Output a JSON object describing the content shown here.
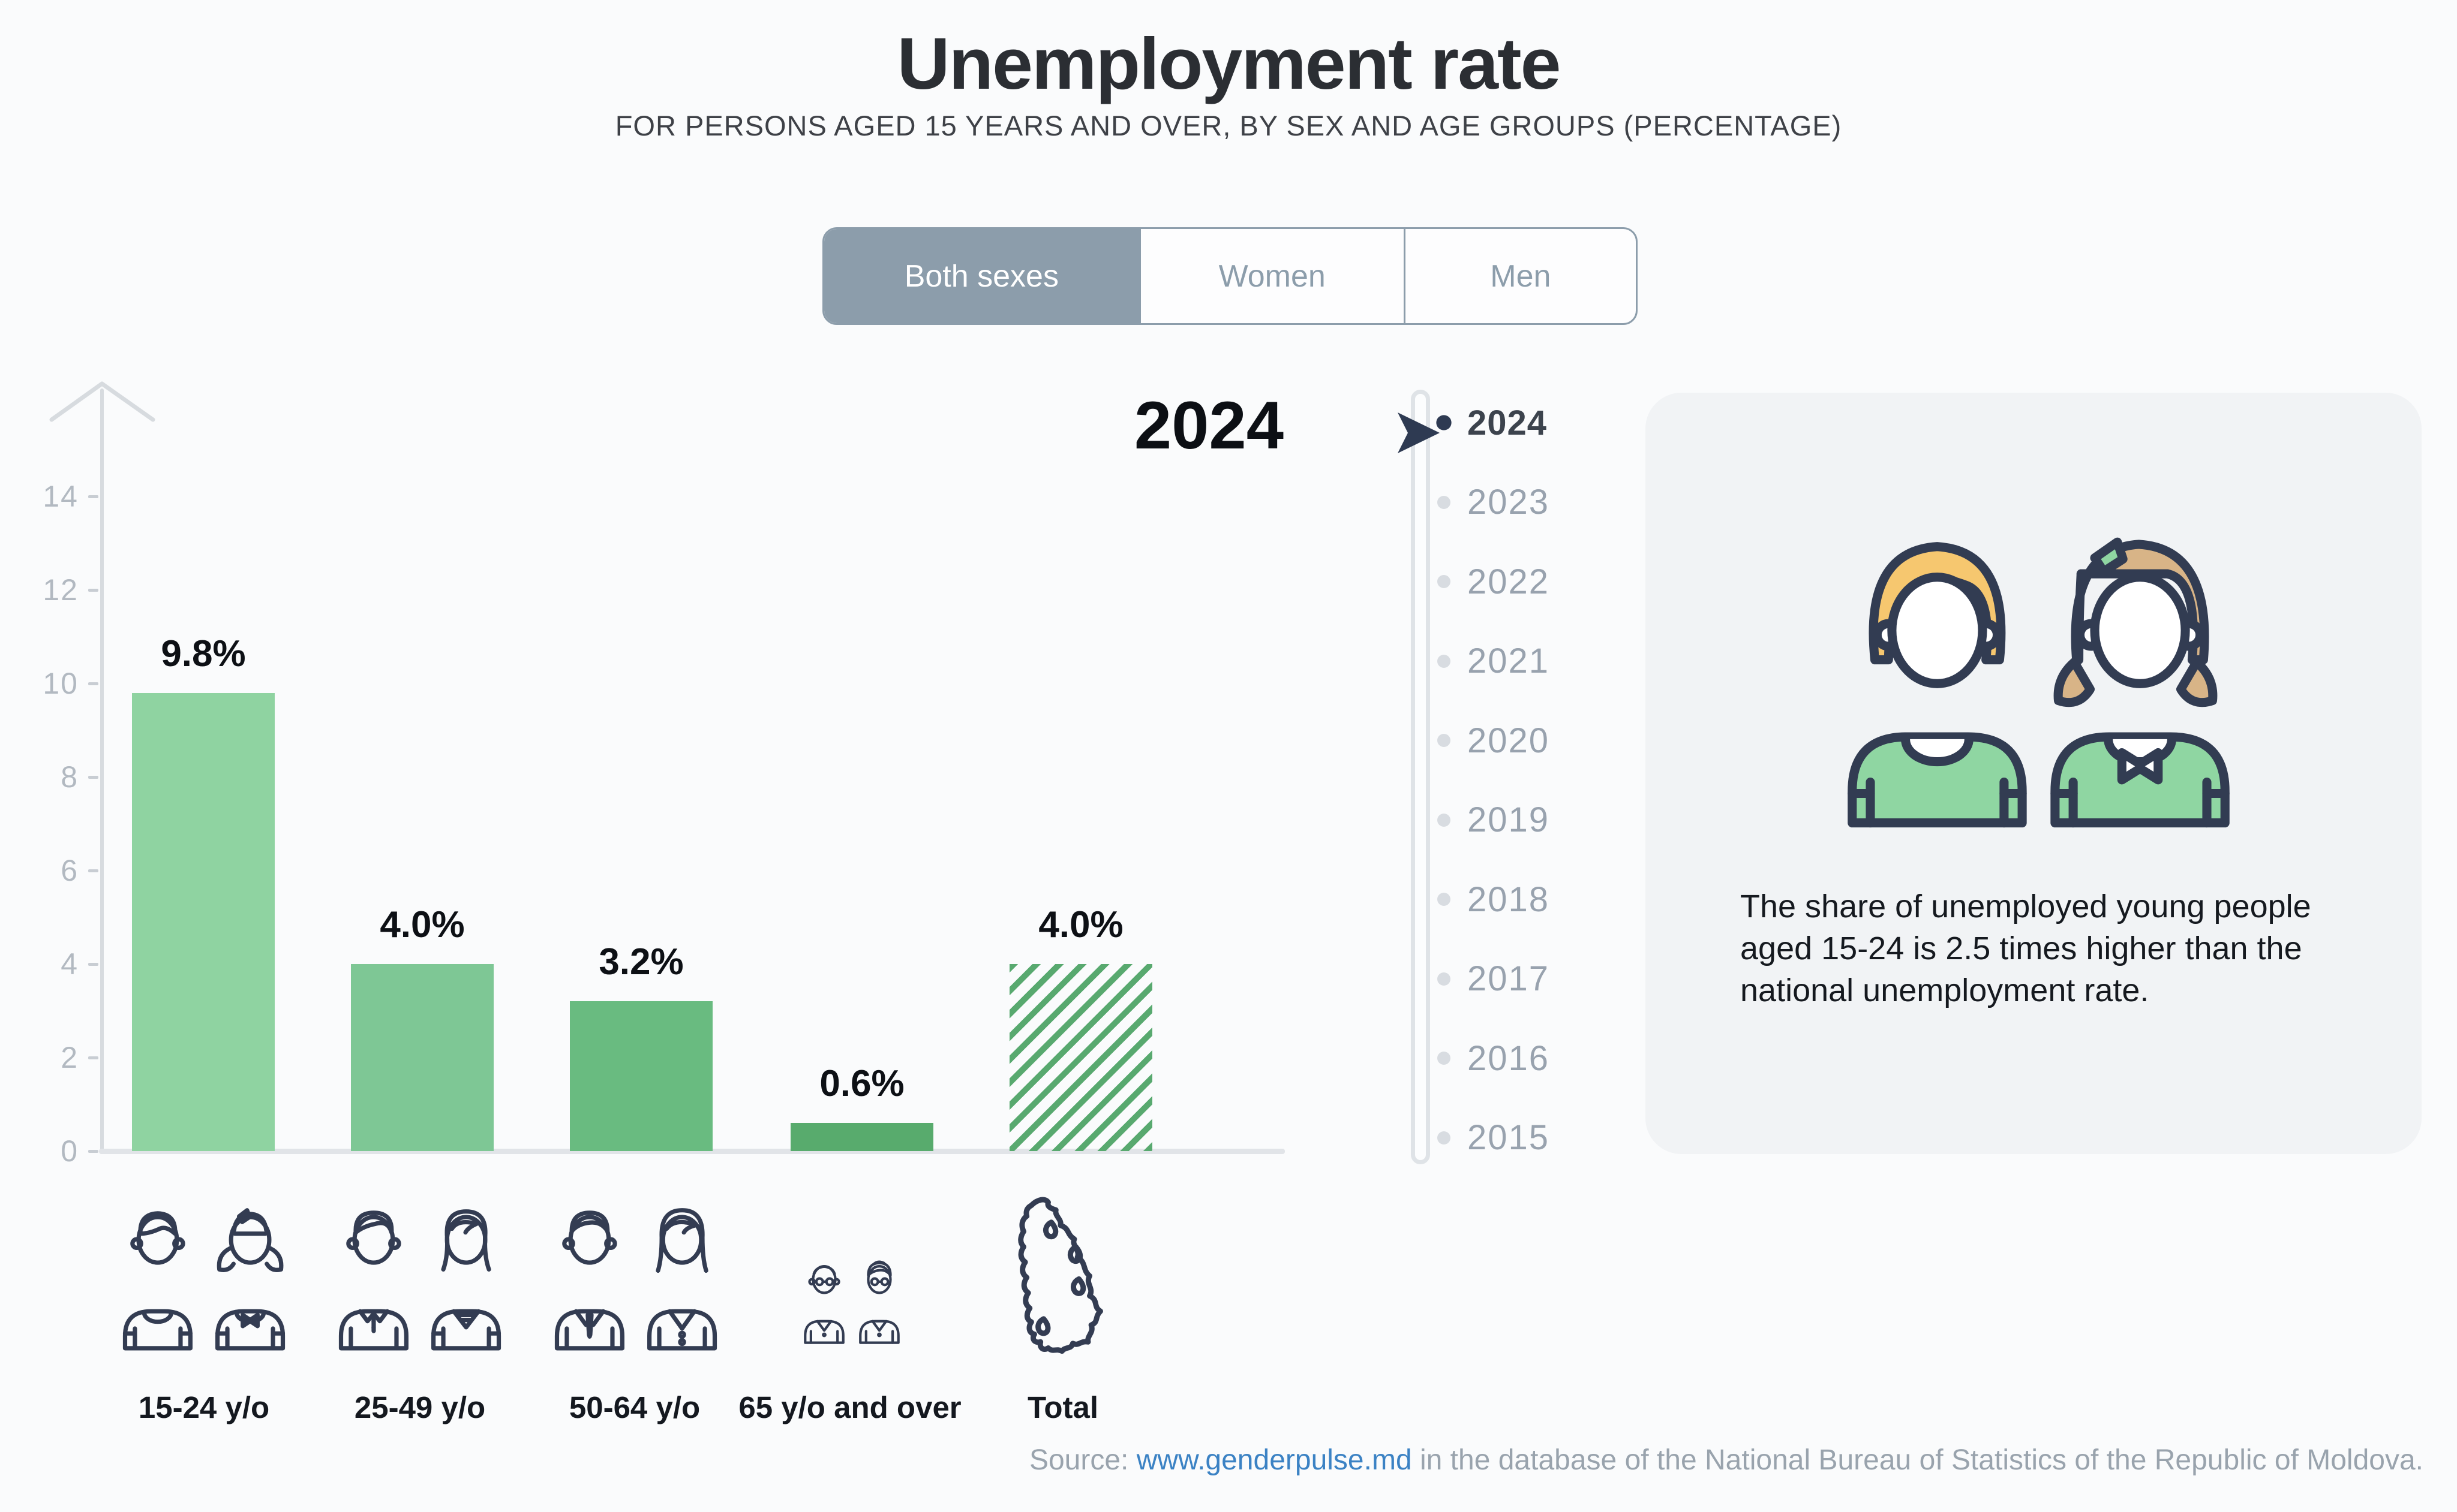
{
  "header": {
    "title": "Unemployment rate",
    "subtitle": "FOR PERSONS AGED 15 YEARS AND OVER, BY SEX AND AGE GROUPS (PERCENTAGE)"
  },
  "tabs": {
    "items": [
      {
        "label": "Both sexes",
        "active": true
      },
      {
        "label": "Women",
        "active": false
      },
      {
        "label": "Men",
        "active": false
      }
    ]
  },
  "chart_data": {
    "type": "bar",
    "title": "2024",
    "categories": [
      "15-24 y/o",
      "25-49 y/o",
      "50-64 y/o",
      "65 y/o and over",
      "Total"
    ],
    "values": [
      9.8,
      4.0,
      3.2,
      0.6,
      4.0
    ],
    "value_labels": [
      "9.8%",
      "4.0%",
      "3.2%",
      "0.6%",
      "4.0%"
    ],
    "yticks": [
      0,
      2,
      4,
      6,
      8,
      10,
      12,
      14
    ],
    "ylim": [
      0,
      16
    ],
    "xlabel": "",
    "ylabel": "",
    "grid": false,
    "legend": "none",
    "bar_styles": [
      "solid",
      "solid",
      "solid",
      "solid",
      "hatched"
    ],
    "bar_colors": [
      "#8fd3a1",
      "#7ec795",
      "#69bb80",
      "#58ab6d",
      "#58a96f"
    ]
  },
  "year_selector": {
    "selected": "2024",
    "years": [
      "2024",
      "2023",
      "2022",
      "2021",
      "2020",
      "2019",
      "2018",
      "2017",
      "2016",
      "2015"
    ]
  },
  "info_card": {
    "text": "The share of unemployed young people aged 15-24 is 2.5 times higher than the national unemployment rate."
  },
  "source": {
    "prefix": "Source: ",
    "link_text": "www.genderpulse.md",
    "suffix": " in the database of the National Bureau of Statistics of the Republic of Moldova."
  },
  "icons": {
    "age_group_icons": [
      "young-couple-icon",
      "adult-couple-icon",
      "senior-couple-icon",
      "elderly-couple-icon",
      "moldova-map-icon"
    ]
  },
  "colors": {
    "background": "#fafbfc",
    "card_background": "#f1f3f5",
    "tab_active": "#8c9dab",
    "accent_navy": "#2e3a52",
    "link_blue": "#3b82c4",
    "axis_gray": "#d7dbdf"
  }
}
